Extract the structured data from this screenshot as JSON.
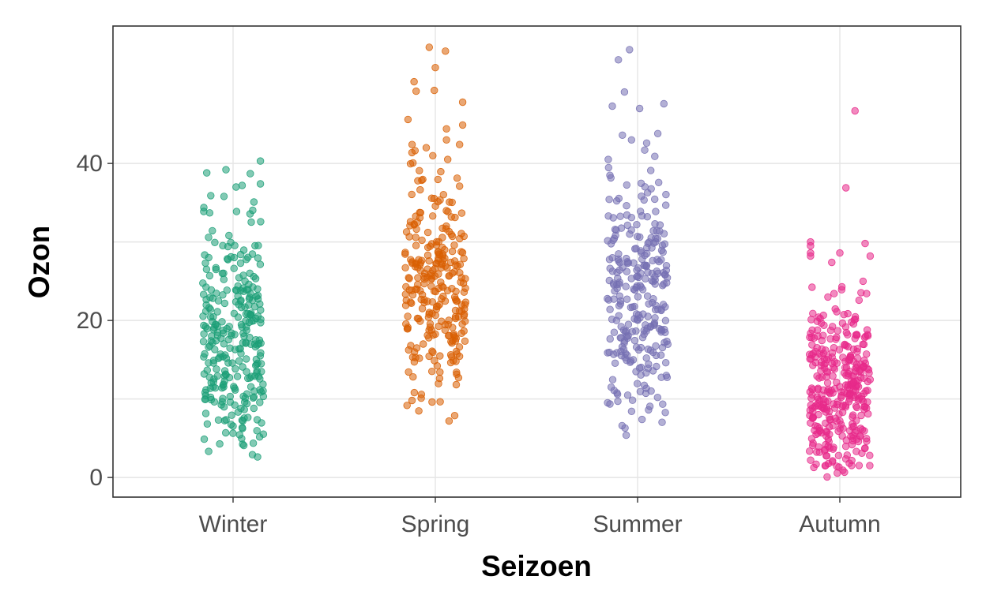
{
  "chart_data": {
    "type": "scatter",
    "subtype": "jitter-strip",
    "xlabel": "Seizoen",
    "ylabel": "Ozon",
    "categories": [
      "Winter",
      "Spring",
      "Summer",
      "Autumn"
    ],
    "ylim": [
      -2.5,
      57.5
    ],
    "yticks": [
      0,
      20,
      40
    ],
    "grid": true,
    "legend": "none",
    "point_opacity": 0.55,
    "series": [
      {
        "category": "Winter",
        "color": "#1B9E77",
        "count": 300,
        "range": [
          2.5,
          40.5
        ],
        "mean": 17,
        "sd": 8.5,
        "outliers": [
          {
            "dx": -0.26,
            "y": 38.8
          },
          {
            "dx": -0.07,
            "y": 39.2
          },
          {
            "dx": 0.17,
            "y": 38.7
          },
          {
            "dx": 0.27,
            "y": 40.3
          },
          {
            "dx": 0.27,
            "y": 37.4
          },
          {
            "dx": 0.03,
            "y": 37.0
          },
          {
            "dx": 0.09,
            "y": 37.2
          },
          {
            "dx": -0.22,
            "y": 35.9
          },
          {
            "dx": -0.09,
            "y": 35.8
          }
        ]
      },
      {
        "category": "Spring",
        "color": "#D95F02",
        "count": 290,
        "range": [
          7,
          55
        ],
        "mean": 24.5,
        "sd": 7.5,
        "outliers": [
          {
            "dx": -0.06,
            "y": 54.8
          },
          {
            "dx": 0.1,
            "y": 54.3
          },
          {
            "dx": 0.0,
            "y": 52.2
          },
          {
            "dx": -0.21,
            "y": 50.4
          },
          {
            "dx": -0.19,
            "y": 49.2
          },
          {
            "dx": -0.01,
            "y": 49.3
          },
          {
            "dx": 0.27,
            "y": 47.8
          },
          {
            "dx": -0.27,
            "y": 45.6
          },
          {
            "dx": 0.27,
            "y": 44.9
          },
          {
            "dx": 0.11,
            "y": 44.4
          },
          {
            "dx": 0.11,
            "y": 43.0
          },
          {
            "dx": -0.23,
            "y": 42.4
          },
          {
            "dx": -0.09,
            "y": 42.0
          },
          {
            "dx": 0.24,
            "y": 42.4
          }
        ]
      },
      {
        "category": "Summer",
        "color": "#7570B3",
        "count": 290,
        "range": [
          4,
          55
        ],
        "mean": 23.5,
        "sd": 8,
        "outliers": [
          {
            "dx": -0.19,
            "y": 53.2
          },
          {
            "dx": -0.08,
            "y": 54.5
          },
          {
            "dx": -0.13,
            "y": 49.1
          },
          {
            "dx": -0.25,
            "y": 47.3
          },
          {
            "dx": 0.02,
            "y": 47.0
          },
          {
            "dx": 0.26,
            "y": 47.6
          },
          {
            "dx": -0.15,
            "y": 43.6
          },
          {
            "dx": -0.06,
            "y": 43.0
          },
          {
            "dx": 0.09,
            "y": 42.6
          },
          {
            "dx": 0.2,
            "y": 43.8
          },
          {
            "dx": 0.07,
            "y": 41.7
          },
          {
            "dx": 0.17,
            "y": 40.9
          },
          {
            "dx": -0.29,
            "y": 40.5
          }
        ]
      },
      {
        "category": "Autumn",
        "color": "#E7298A",
        "count": 360,
        "range": [
          0,
          47
        ],
        "mean": 11,
        "sd": 6,
        "outliers": [
          {
            "dx": 0.15,
            "y": 46.7
          },
          {
            "dx": 0.06,
            "y": 36.9
          },
          {
            "dx": -0.29,
            "y": 30.0
          },
          {
            "dx": -0.29,
            "y": 29.5
          },
          {
            "dx": -0.29,
            "y": 28.6
          },
          {
            "dx": -0.29,
            "y": 28.2
          },
          {
            "dx": 0.0,
            "y": 28.6
          },
          {
            "dx": 0.25,
            "y": 29.8
          },
          {
            "dx": 0.3,
            "y": 28.2
          },
          {
            "dx": -0.08,
            "y": 27.4
          },
          {
            "dx": 0.23,
            "y": 25.0
          }
        ]
      }
    ]
  }
}
